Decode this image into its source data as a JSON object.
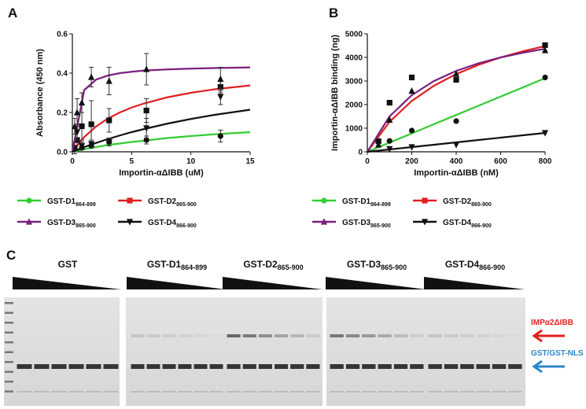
{
  "chart_data": [
    {
      "type": "scatter",
      "panel_label": "A",
      "x_label": "Importin-αΔIBB (uM)",
      "y_label": "Absorbance (450 nm)",
      "xlim": [
        0,
        15
      ],
      "ylim": [
        0,
        0.6
      ],
      "xticks": [
        0,
        5,
        10,
        15
      ],
      "yticks": [
        {
          "value": 0,
          "label": "0.0"
        },
        0.2,
        0.4,
        0.6
      ],
      "series": [
        {
          "name": "GST-D1",
          "subscript": "864-899",
          "color": "#33cc33",
          "marker": "circle",
          "x": [
            0.8,
            1.6,
            3.1,
            6.25,
            12.5
          ],
          "values": [
            0.02,
            0.03,
            0.05,
            0.06,
            0.08
          ],
          "errors": [
            0.01,
            0.01,
            0.01,
            0.02,
            0.03
          ],
          "fit_x": [
            0,
            1,
            2,
            3,
            4,
            5,
            6,
            8,
            10,
            12,
            15
          ],
          "fit_values": [
            0,
            0.013,
            0.024,
            0.035,
            0.042,
            0.05,
            0.056,
            0.07,
            0.08,
            0.089,
            0.1
          ]
        },
        {
          "name": "GST-D2",
          "subscript": "865-900",
          "color": "#e02020",
          "marker": "square",
          "x": [
            0.2,
            0.4,
            0.8,
            1.6,
            3.1,
            6.25,
            12.5
          ],
          "values": [
            0.02,
            0.06,
            0.13,
            0.14,
            0.16,
            0.21,
            0.33
          ],
          "errors": [
            0.03,
            0.05,
            0.07,
            0.12,
            0.06,
            0.06,
            0.03
          ],
          "fit_x": [
            0,
            1,
            2,
            3,
            4,
            5,
            6,
            8,
            10,
            12,
            15
          ],
          "fit_values": [
            0,
            0.075,
            0.129,
            0.169,
            0.2,
            0.225,
            0.245,
            0.277,
            0.3,
            0.318,
            0.3375
          ]
        },
        {
          "name": "GST-D3",
          "subscript": "865-900",
          "color": "#7b1f7f",
          "marker": "triangle-up",
          "x": [
            0.2,
            0.4,
            0.8,
            1.6,
            3.1,
            6.25,
            12.5
          ],
          "values": [
            0.13,
            0.2,
            0.25,
            0.38,
            0.36,
            0.42,
            0.37
          ],
          "errors": [
            0.04,
            0.07,
            0.05,
            0.05,
            0.07,
            0.08,
            0.06
          ],
          "fit_x": [
            0,
            1,
            2,
            3,
            4,
            5,
            6,
            8,
            10,
            12,
            15
          ],
          "fit_values": [
            0,
            0.314,
            0.367,
            0.388,
            0.4,
            0.407,
            0.413,
            0.419,
            0.423,
            0.426,
            0.429
          ]
        },
        {
          "name": "GST-D4",
          "subscript": "866-900",
          "color": "#111111",
          "marker": "triangle-down",
          "x": [
            0.4,
            0.8,
            1.6,
            3.1,
            6.25,
            12.5
          ],
          "values": [
            0.1,
            0.03,
            0.04,
            0.05,
            0.12,
            0.28
          ],
          "errors": [
            0.04,
            0.02,
            0.02,
            0.02,
            0.05,
            0.04
          ],
          "fit_x": [
            0,
            1,
            2,
            3,
            4,
            5,
            6,
            8,
            10,
            12,
            15
          ],
          "fit_values": [
            0,
            0.024,
            0.045,
            0.065,
            0.083,
            0.1,
            0.115,
            0.143,
            0.167,
            0.188,
            0.214
          ]
        }
      ]
    },
    {
      "type": "scatter",
      "panel_label": "B",
      "x_label": "Importin-αΔIBB (nM)",
      "y_label": "Importin-αΔIBB binding (ng)",
      "xlim": [
        0,
        800
      ],
      "ylim": [
        0,
        5000
      ],
      "xticks": [
        0,
        200,
        400,
        600,
        800
      ],
      "yticks": [
        0,
        1000,
        2000,
        3000,
        4000,
        5000
      ],
      "series": [
        {
          "name": "GST-D1",
          "subscript": "864-899",
          "color": "#33cc33",
          "marker": "circle",
          "x": [
            100,
            200,
            400,
            800
          ],
          "values": [
            460,
            900,
            1300,
            3150
          ],
          "fit_x": [
            0,
            100,
            200,
            300,
            400,
            500,
            600,
            700,
            800
          ],
          "fit_values": [
            0,
            390,
            780,
            1170,
            1560,
            1950,
            2340,
            2730,
            3120
          ]
        },
        {
          "name": "GST-D2",
          "subscript": "865-900",
          "color": "#e02020",
          "marker": "square",
          "x": [
            50,
            100,
            200,
            400,
            800
          ],
          "values": [
            450,
            2080,
            3150,
            3050,
            4520
          ],
          "fit_x": [
            0,
            100,
            200,
            300,
            400,
            500,
            600,
            700,
            800
          ],
          "fit_values": [
            0,
            1273,
            2154,
            2800,
            3294,
            3684,
            4000,
            4261,
            4480
          ]
        },
        {
          "name": "GST-D3",
          "subscript": "865-900",
          "color": "#7b1f7f",
          "marker": "triangle-up",
          "x": [
            50,
            100,
            200,
            400,
            800
          ],
          "values": [
            300,
            1350,
            2580,
            3300,
            4300
          ],
          "fit_x": [
            0,
            100,
            200,
            300,
            400,
            500,
            600,
            700,
            800
          ],
          "fit_values": [
            0,
            1500,
            2400,
            3000,
            3429,
            3750,
            4000,
            4200,
            4364
          ]
        },
        {
          "name": "GST-D4",
          "subscript": "866-900",
          "color": "#111111",
          "marker": "triangle-down",
          "x": [
            100,
            200,
            400,
            800
          ],
          "values": [
            120,
            200,
            300,
            800
          ],
          "fit_x": [
            0,
            100,
            200,
            300,
            400,
            500,
            600,
            700,
            800
          ],
          "fit_values": [
            0,
            100,
            200,
            300,
            400,
            500,
            600,
            700,
            800
          ]
        }
      ]
    }
  ],
  "panel_c": {
    "panel_label": "C",
    "lanes": [
      {
        "name": "GST"
      },
      {
        "name": "GST-D1",
        "subscript": "864-899"
      },
      {
        "name": "GST-D2",
        "subscript": "865-900"
      },
      {
        "name": "GST-D3",
        "subscript": "865-900"
      },
      {
        "name": "GST-D4",
        "subscript": "866-900"
      }
    ],
    "bands": [
      {
        "label": "IMPα2ΔIBB",
        "color": "#e0201f"
      },
      {
        "label": "GST/GST-NLS",
        "color": "#2b87c8"
      }
    ]
  }
}
